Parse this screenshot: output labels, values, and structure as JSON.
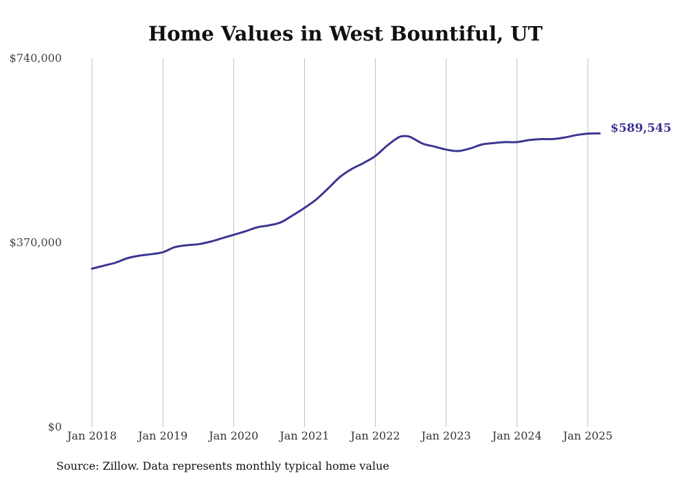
{
  "chart_data": {
    "type": "line",
    "title": "Home Values in West Bountiful, UT",
    "source_note": "Source: Zillow. Data represents monthly typical home value",
    "y_ticks": [
      "$740,000",
      "$370,000",
      "$0"
    ],
    "y_tick_values": [
      740000,
      370000,
      0
    ],
    "ylim": [
      0,
      740000
    ],
    "x_ticks": [
      "Jan 2018",
      "Jan 2019",
      "Jan 2020",
      "Jan 2021",
      "Jan 2022",
      "Jan 2023",
      "Jan 2024",
      "Jan 2025"
    ],
    "x_tick_values": [
      "2018-01",
      "2019-01",
      "2020-01",
      "2021-01",
      "2022-01",
      "2023-01",
      "2024-01",
      "2025-01"
    ],
    "xlim": [
      "2018-01",
      "2025-03"
    ],
    "grid": "vertical",
    "line_color": "#3b3592",
    "end_label": "$589,545",
    "series": [
      {
        "points": [
          [
            "2018-01",
            318000
          ],
          [
            "2018-03",
            324000
          ],
          [
            "2018-05",
            330000
          ],
          [
            "2018-07",
            339000
          ],
          [
            "2018-09",
            344000
          ],
          [
            "2018-11",
            347000
          ],
          [
            "2019-01",
            351000
          ],
          [
            "2019-03",
            361000
          ],
          [
            "2019-05",
            365000
          ],
          [
            "2019-07",
            367000
          ],
          [
            "2019-09",
            372000
          ],
          [
            "2019-11",
            379000
          ],
          [
            "2020-01",
            386000
          ],
          [
            "2020-03",
            393000
          ],
          [
            "2020-05",
            401000
          ],
          [
            "2020-07",
            405000
          ],
          [
            "2020-09",
            411000
          ],
          [
            "2020-11",
            425000
          ],
          [
            "2021-01",
            440000
          ],
          [
            "2021-03",
            457000
          ],
          [
            "2021-05",
            479000
          ],
          [
            "2021-07",
            502000
          ],
          [
            "2021-09",
            518000
          ],
          [
            "2021-11",
            530000
          ],
          [
            "2022-01",
            544000
          ],
          [
            "2022-03",
            565000
          ],
          [
            "2022-05",
            582000
          ],
          [
            "2022-06",
            584000
          ],
          [
            "2022-07",
            582000
          ],
          [
            "2022-09",
            569000
          ],
          [
            "2022-11",
            563000
          ],
          [
            "2023-01",
            557000
          ],
          [
            "2023-03",
            554000
          ],
          [
            "2023-05",
            559000
          ],
          [
            "2023-07",
            567000
          ],
          [
            "2023-09",
            570000
          ],
          [
            "2023-11",
            572000
          ],
          [
            "2024-01",
            572000
          ],
          [
            "2024-03",
            576000
          ],
          [
            "2024-05",
            578000
          ],
          [
            "2024-07",
            578000
          ],
          [
            "2024-09",
            581000
          ],
          [
            "2024-11",
            586000
          ],
          [
            "2025-01",
            589000
          ],
          [
            "2025-03",
            589545
          ]
        ]
      }
    ]
  }
}
